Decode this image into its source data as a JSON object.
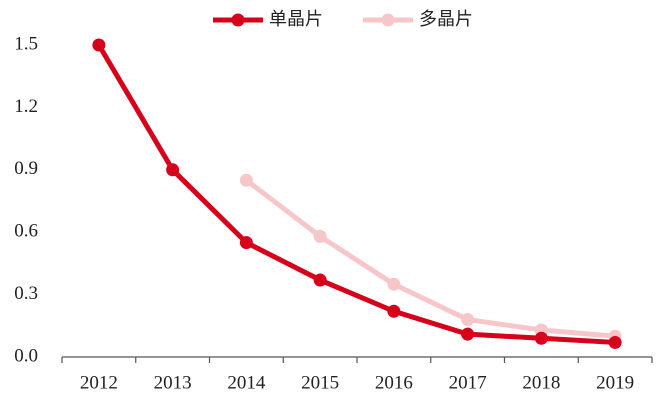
{
  "chart_data": {
    "type": "line",
    "categories": [
      "2012",
      "2013",
      "2014",
      "2015",
      "2016",
      "2017",
      "2018",
      "2019"
    ],
    "series": [
      {
        "name": "单晶片",
        "color": "#d7001a",
        "values": [
          1.5,
          0.9,
          0.55,
          0.37,
          0.22,
          0.11,
          0.09,
          0.07
        ]
      },
      {
        "name": "多晶片",
        "color": "#f7c6c9",
        "values": [
          null,
          null,
          0.85,
          0.58,
          0.35,
          0.18,
          0.13,
          0.1
        ]
      }
    ],
    "ylim": [
      0,
      1.5
    ],
    "yticks": [
      {
        "value": 0,
        "label": "0.0"
      },
      0.3,
      0.6,
      0.9,
      1.2,
      1.5
    ],
    "grid": false,
    "legend": "top"
  }
}
